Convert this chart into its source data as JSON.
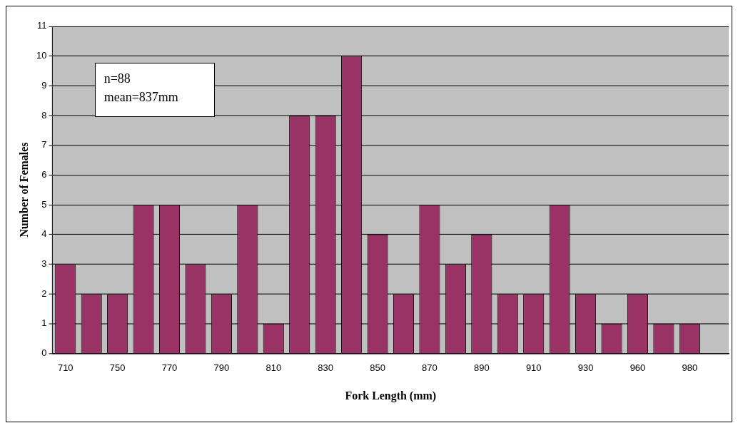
{
  "chart_data": {
    "type": "bar",
    "xlabel": "Fork Length (mm)",
    "ylabel": "Number of Females",
    "categories": [
      "710",
      null,
      "750",
      null,
      "770",
      null,
      "790",
      null,
      "810",
      null,
      "830",
      null,
      "850",
      null,
      "870",
      null,
      "890",
      null,
      "910",
      null,
      "930",
      null,
      "960",
      null,
      "980",
      null
    ],
    "values": [
      3,
      2,
      2,
      5,
      5,
      3,
      2,
      5,
      1,
      8,
      8,
      10,
      4,
      2,
      5,
      3,
      4,
      2,
      2,
      5,
      2,
      1,
      2,
      1,
      1,
      null
    ],
    "color": "#993366",
    "ylim": [
      0,
      11
    ],
    "yticks": [
      0,
      1,
      2,
      3,
      4,
      5,
      6,
      7,
      8,
      9,
      10,
      11
    ],
    "grid": "y",
    "legend": false,
    "annotations": [
      "n=88",
      "mean=837mm"
    ]
  }
}
